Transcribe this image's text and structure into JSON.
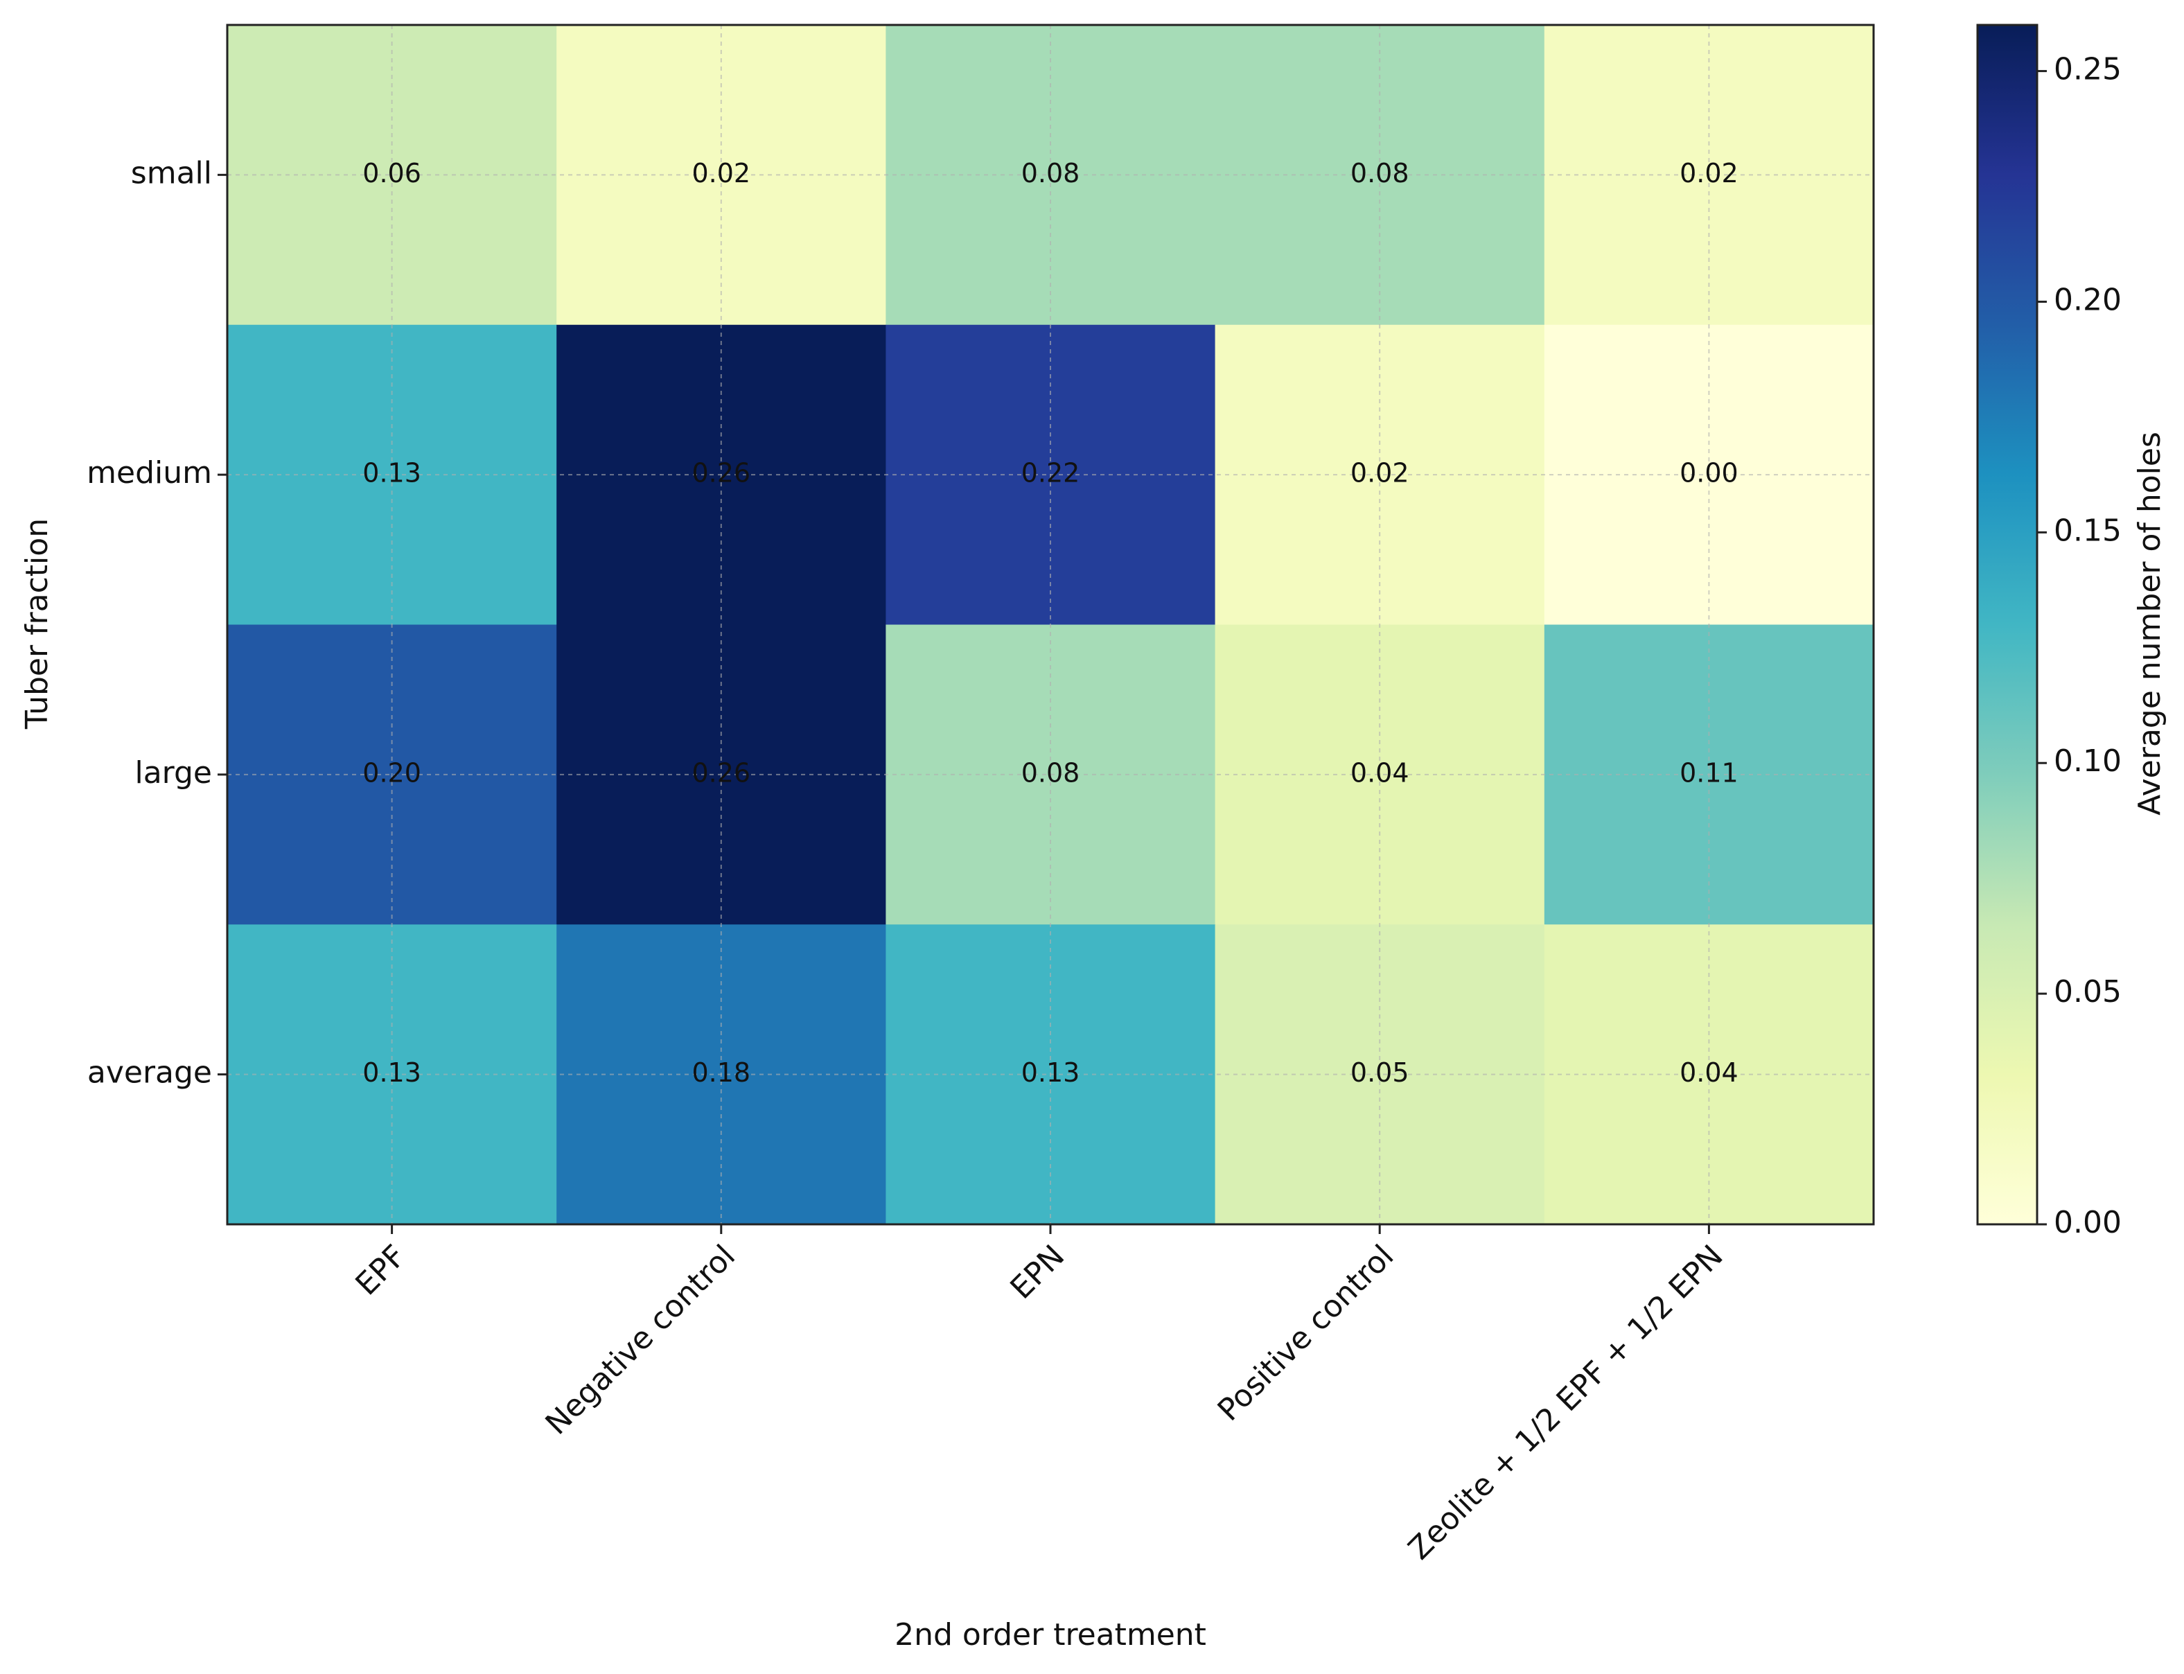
{
  "chart_data": {
    "type": "heatmap",
    "x_label": "2nd order treatment",
    "y_label": "Tuber fraction",
    "x_categories": [
      "EPF",
      "Negative control",
      "EPN",
      "Positive control",
      "Zeolite + 1/2 EPF + 1/2 EPN"
    ],
    "y_categories": [
      "small",
      "medium",
      "large",
      "average"
    ],
    "values": [
      [
        0.06,
        0.02,
        0.08,
        0.08,
        0.02
      ],
      [
        0.13,
        0.26,
        0.22,
        0.02,
        0.0
      ],
      [
        0.2,
        0.26,
        0.08,
        0.04,
        0.11
      ],
      [
        0.13,
        0.18,
        0.13,
        0.05,
        0.04
      ]
    ],
    "value_labels": [
      [
        "0.06",
        "0.02",
        "0.08",
        "0.08",
        "0.02"
      ],
      [
        "0.13",
        "0.26",
        "0.22",
        "0.02",
        "0.00"
      ],
      [
        "0.20",
        "0.26",
        "0.08",
        "0.04",
        "0.11"
      ],
      [
        "0.13",
        "0.18",
        "0.13",
        "0.05",
        "0.04"
      ]
    ],
    "colormap": "YlGnBu",
    "grid": true,
    "colorbar": {
      "label": "Average number of holes",
      "lim": [
        0,
        0.26
      ],
      "ticks": [
        {
          "value": 0,
          "label": "0.00"
        },
        0.05,
        {
          "value": 0.1,
          "label": "0.10"
        },
        0.15,
        {
          "value": 0.2,
          "label": "0.20"
        },
        0.25
      ]
    }
  }
}
